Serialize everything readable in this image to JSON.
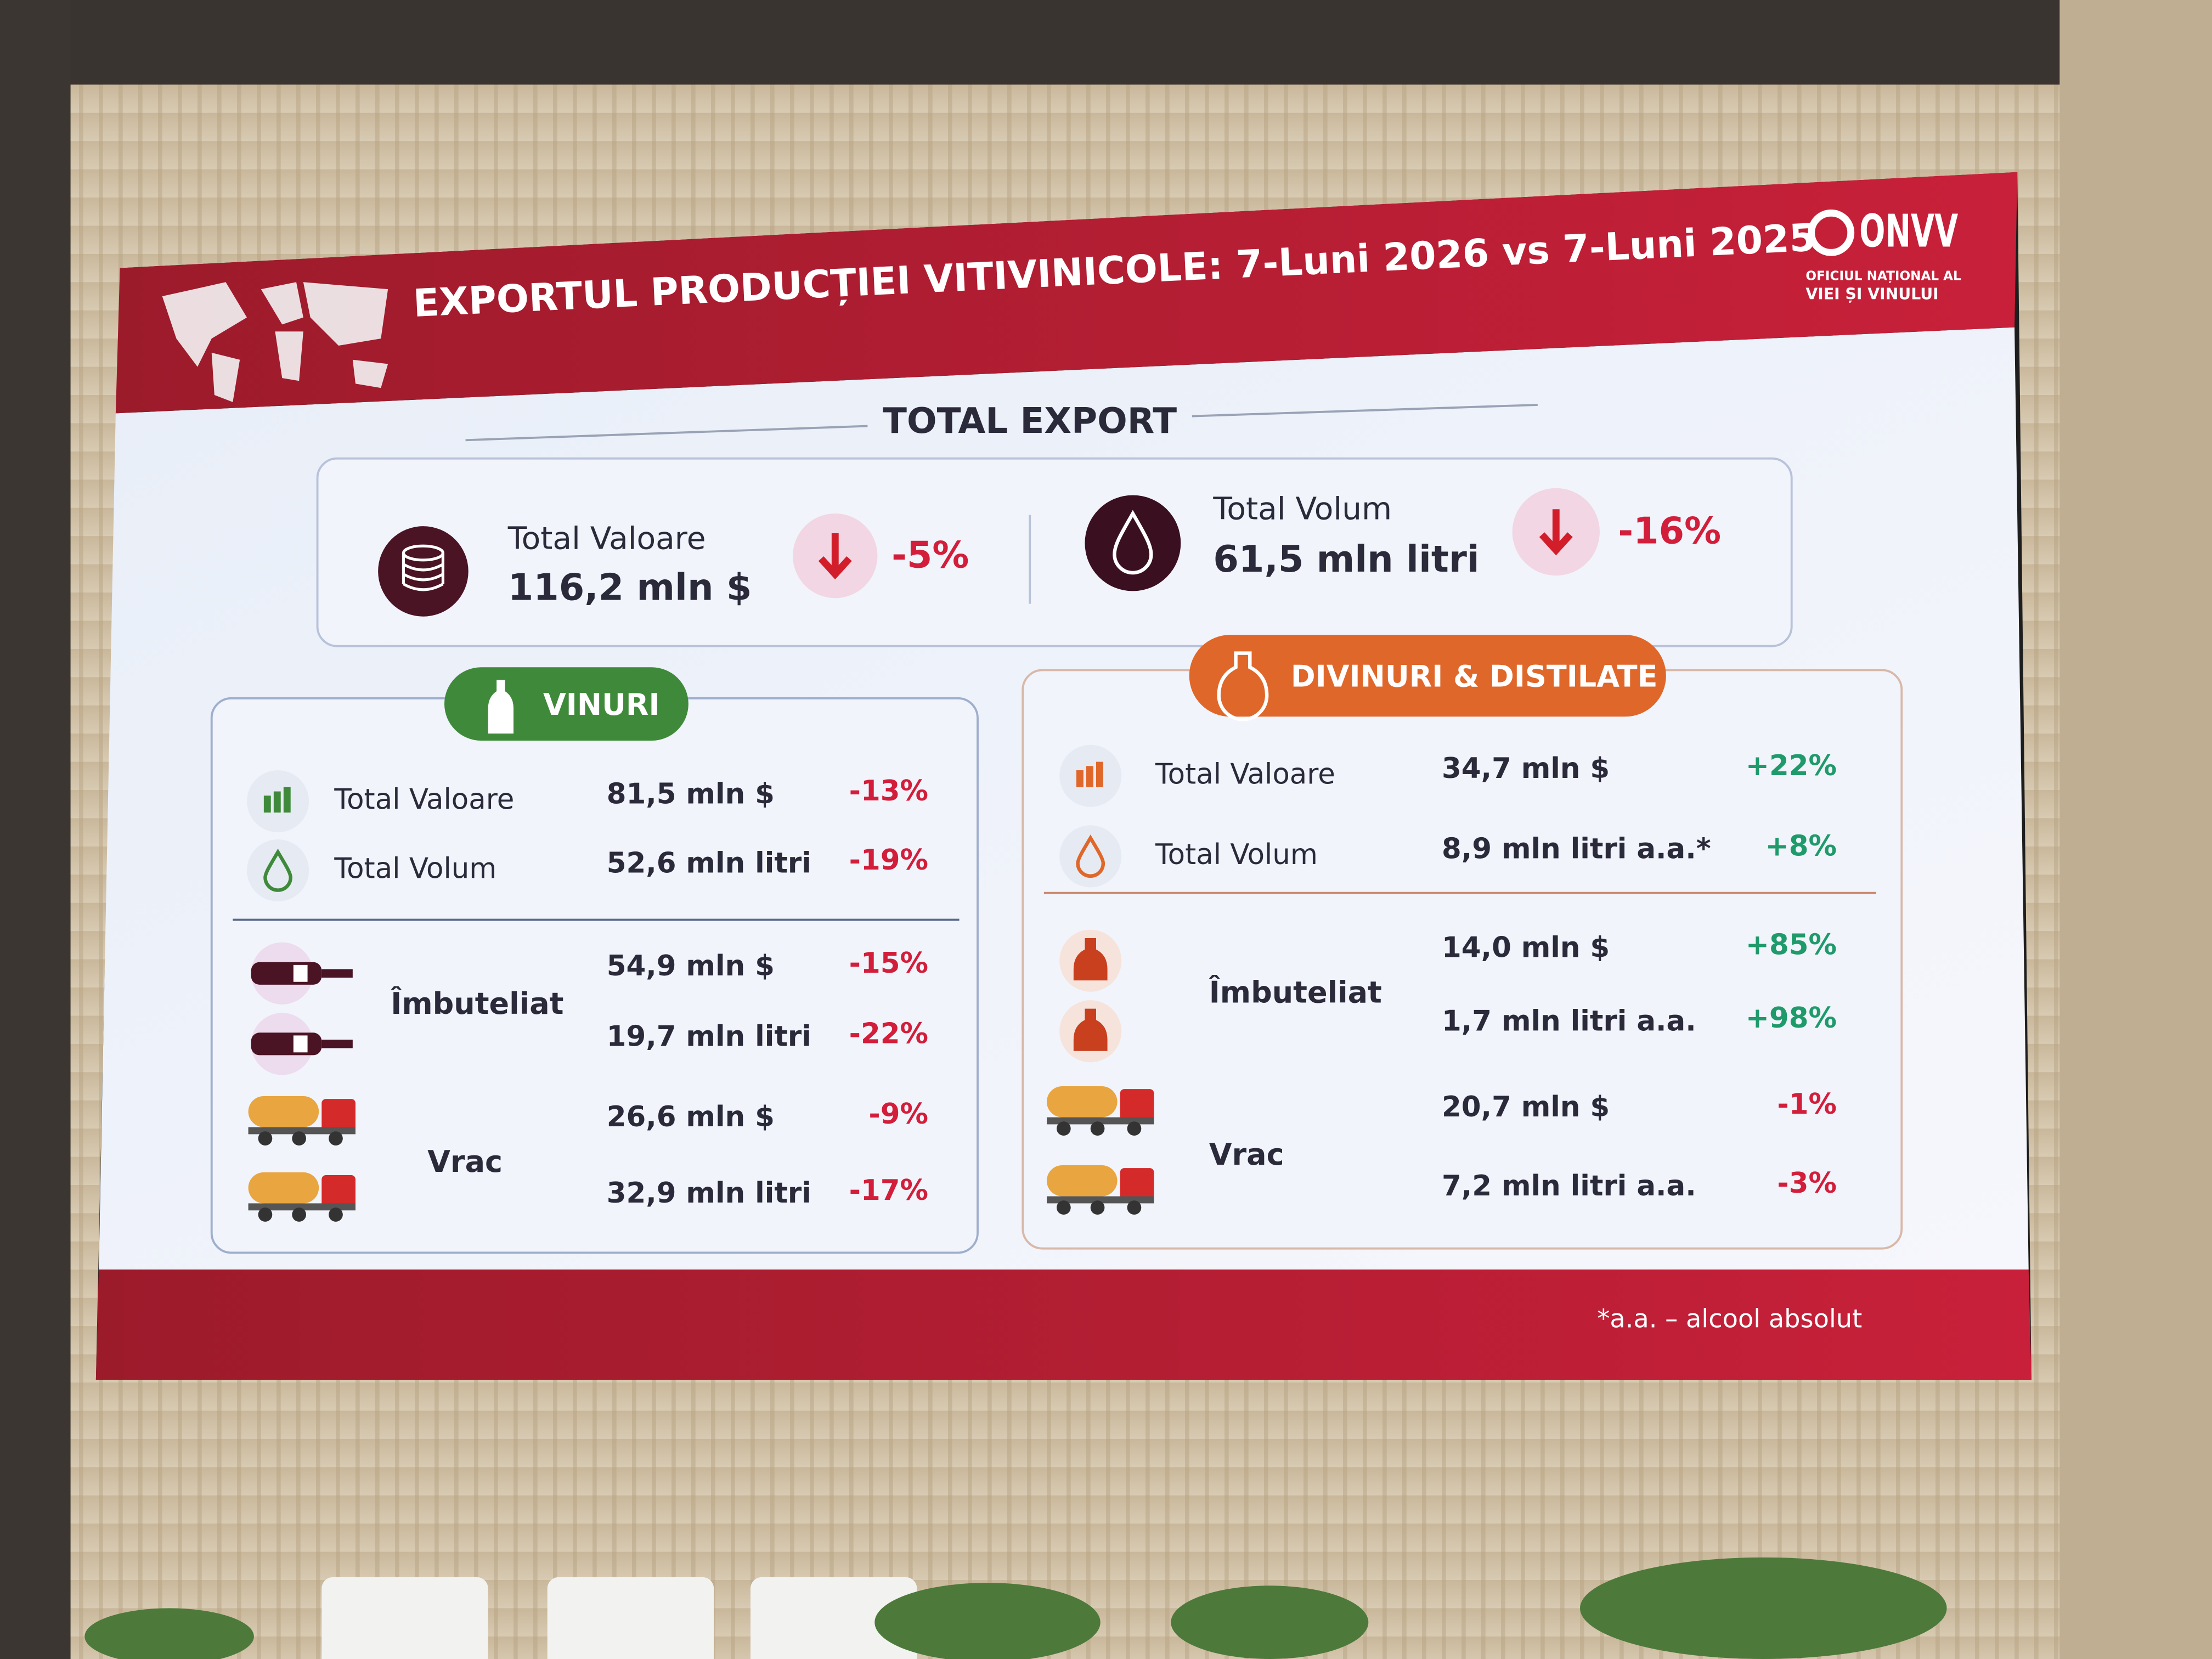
{
  "header": {
    "title": "EXPORTUL PRODUCȚIEI VITIVINICOLE:  7-Luni 2026 vs 7-Luni 2025",
    "logo": "ONVV",
    "logo_subtitle": [
      "OFICIUL NAȚIONAL AL",
      "VIEI ȘI VINULUI"
    ]
  },
  "total_export": {
    "heading": "TOTAL EXPORT",
    "items": [
      {
        "label": "Total Valoare",
        "value": "116,2 mln $",
        "change": "-5%"
      },
      {
        "label": "Total Volum",
        "value": "61,5 mln litri",
        "change": "-16%"
      }
    ]
  },
  "vinuri": {
    "heading": "VINURI",
    "rows": [
      {
        "label": "Total Valoare",
        "value": "81,5 mln $",
        "change": "-13%"
      },
      {
        "label": "Total Volum",
        "value": "52,6 mln litri",
        "change": "-19%"
      }
    ],
    "groups": [
      {
        "label": "Îmbuteliat",
        "rows": [
          {
            "value": "54,9 mln $",
            "change": "-15%"
          },
          {
            "value": "19,7 mln litri",
            "change": "-22%"
          }
        ]
      },
      {
        "label": "Vrac",
        "rows": [
          {
            "value": "26,6 mln $",
            "change": "-9%"
          },
          {
            "value": "32,9 mln litri",
            "change": "-17%"
          }
        ]
      }
    ]
  },
  "divinuri": {
    "heading": "DIVINURI & DISTILATE",
    "rows": [
      {
        "label": "Total Valoare",
        "value": "34,7 mln $",
        "change": "+22%"
      },
      {
        "label": "Total Volum",
        "value": "8,9 mln litri a.a.*",
        "change": "+8%"
      }
    ],
    "groups": [
      {
        "label": "Îmbuteliat",
        "rows": [
          {
            "value": "14,0 mln $",
            "change": "+85%"
          },
          {
            "value": "1,7 mln litri a.a.",
            "change": "+98%"
          }
        ]
      },
      {
        "label": "Vrac",
        "rows": [
          {
            "value": "20,7 mln $",
            "change": "-1%"
          },
          {
            "value": "7,2 mln litri a.a.",
            "change": "-3%"
          }
        ]
      }
    ]
  },
  "footnote": "*a.a. – alcool absolut"
}
